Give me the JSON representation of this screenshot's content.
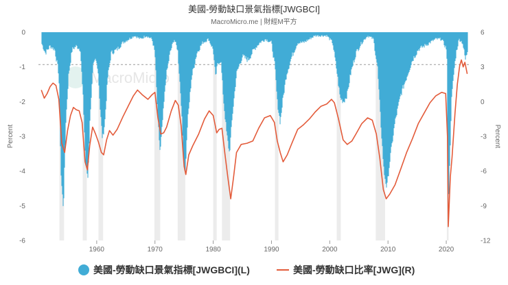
{
  "chart_data": {
    "type": "area",
    "title": "美國-勞動缺口景氣指標[JWGBCI]",
    "subtitle": "MacroMicro.me | 財經M平方",
    "watermark": "MacroMicro",
    "x_ticks": [
      "1960",
      "1970",
      "1980",
      "1990",
      "2000",
      "2010",
      "2020"
    ],
    "x_range": [
      1950,
      2024
    ],
    "left_axis": {
      "label": "Percent",
      "ylim": [
        -6,
        0
      ],
      "ticks": [
        "0",
        "-1",
        "-2",
        "-3",
        "-4",
        "-5",
        "-6"
      ]
    },
    "right_axis": {
      "label": "Percent",
      "ylim": [
        -12,
        6
      ],
      "ticks": [
        "6",
        "3",
        "0",
        "-3",
        "-6",
        "-9",
        "-12"
      ]
    },
    "reference_line_right": 3.2,
    "recessions": [
      [
        1953.6,
        1954.4
      ],
      [
        1957.6,
        1958.3
      ],
      [
        1960.3,
        1961.1
      ],
      [
        1969.9,
        1970.9
      ],
      [
        1973.9,
        1975.2
      ],
      [
        1980.0,
        1980.6
      ],
      [
        1981.5,
        1982.9
      ],
      [
        1990.6,
        1991.2
      ],
      [
        2001.2,
        2001.9
      ],
      [
        2007.9,
        2009.5
      ],
      [
        2020.1,
        2020.4
      ]
    ],
    "series": [
      {
        "name": "美國-勞動缺口景氣指標[JWGBCI](L)",
        "axis": "left",
        "color": "#41acd6",
        "points": [
          [
            1950.5,
            -0.3
          ],
          [
            1951.2,
            -0.6
          ],
          [
            1952.0,
            -0.4
          ],
          [
            1952.8,
            -0.5
          ],
          [
            1953.5,
            -1.2
          ],
          [
            1953.9,
            -4.2
          ],
          [
            1954.3,
            -5.1
          ],
          [
            1954.7,
            -2.6
          ],
          [
            1955.2,
            -1.2
          ],
          [
            1955.8,
            -0.5
          ],
          [
            1956.5,
            -0.4
          ],
          [
            1957.2,
            -0.5
          ],
          [
            1957.7,
            -2.0
          ],
          [
            1958.1,
            -3.8
          ],
          [
            1958.5,
            -4.2
          ],
          [
            1958.9,
            -2.3
          ],
          [
            1959.4,
            -1.0
          ],
          [
            1959.8,
            -0.8
          ],
          [
            1960.2,
            -1.0
          ],
          [
            1960.6,
            -2.2
          ],
          [
            1961.0,
            -3.1
          ],
          [
            1961.4,
            -2.6
          ],
          [
            1961.9,
            -1.3
          ],
          [
            1962.5,
            -0.6
          ],
          [
            1963.5,
            -0.5
          ],
          [
            1964.5,
            -0.3
          ],
          [
            1965.5,
            -0.2
          ],
          [
            1966.5,
            -0.1
          ],
          [
            1967.5,
            -0.2
          ],
          [
            1968.5,
            -0.1
          ],
          [
            1969.5,
            -0.2
          ],
          [
            1970.0,
            -0.6
          ],
          [
            1970.5,
            -2.5
          ],
          [
            1970.9,
            -3.5
          ],
          [
            1971.3,
            -2.6
          ],
          [
            1971.9,
            -1.3
          ],
          [
            1972.6,
            -0.6
          ],
          [
            1973.3,
            -0.2
          ],
          [
            1973.9,
            -0.5
          ],
          [
            1974.5,
            -2.0
          ],
          [
            1974.9,
            -3.6
          ],
          [
            1975.2,
            -4.1
          ],
          [
            1975.6,
            -2.6
          ],
          [
            1976.3,
            -1.3
          ],
          [
            1977.2,
            -0.6
          ],
          [
            1978.2,
            -0.3
          ],
          [
            1979.2,
            -0.2
          ],
          [
            1980.0,
            -0.5
          ],
          [
            1980.4,
            -1.3
          ],
          [
            1980.8,
            -0.9
          ],
          [
            1981.3,
            -0.8
          ],
          [
            1981.8,
            -2.0
          ],
          [
            1982.3,
            -2.9
          ],
          [
            1982.8,
            -3.5
          ],
          [
            1983.3,
            -2.4
          ],
          [
            1984.0,
            -1.2
          ],
          [
            1985.0,
            -0.7
          ],
          [
            1986.0,
            -0.8
          ],
          [
            1987.0,
            -0.5
          ],
          [
            1988.0,
            -0.3
          ],
          [
            1989.0,
            -0.2
          ],
          [
            1990.0,
            -0.3
          ],
          [
            1990.6,
            -1.0
          ],
          [
            1991.0,
            -2.0
          ],
          [
            1991.5,
            -2.6
          ],
          [
            1992.0,
            -1.9
          ],
          [
            1992.6,
            -1.2
          ],
          [
            1993.5,
            -0.7
          ],
          [
            1994.5,
            -0.3
          ],
          [
            1995.5,
            -0.3
          ],
          [
            1996.5,
            -0.2
          ],
          [
            1997.5,
            -0.1
          ],
          [
            1998.5,
            -0.1
          ],
          [
            1999.5,
            -0.1
          ],
          [
            2000.5,
            -0.3
          ],
          [
            2001.2,
            -1.1
          ],
          [
            2001.8,
            -1.9
          ],
          [
            2002.4,
            -2.0
          ],
          [
            2003.0,
            -1.8
          ],
          [
            2003.6,
            -1.2
          ],
          [
            2004.5,
            -0.6
          ],
          [
            2005.5,
            -0.3
          ],
          [
            2006.5,
            -0.1
          ],
          [
            2007.5,
            -0.2
          ],
          [
            2008.2,
            -1.0
          ],
          [
            2008.8,
            -2.7
          ],
          [
            2009.3,
            -4.0
          ],
          [
            2009.8,
            -4.5
          ],
          [
            2010.4,
            -3.6
          ],
          [
            2011.2,
            -2.6
          ],
          [
            2012.2,
            -1.8
          ],
          [
            2013.2,
            -1.3
          ],
          [
            2014.2,
            -0.8
          ],
          [
            2015.2,
            -0.5
          ],
          [
            2016.2,
            -0.4
          ],
          [
            2017.2,
            -0.3
          ],
          [
            2018.2,
            -0.2
          ],
          [
            2019.2,
            -0.2
          ],
          [
            2020.1,
            -0.5
          ],
          [
            2020.3,
            -5.6
          ],
          [
            2020.6,
            -3.8
          ],
          [
            2020.9,
            -2.0
          ],
          [
            2021.3,
            -1.2
          ],
          [
            2021.7,
            -0.6
          ],
          [
            2022.2,
            -0.2
          ],
          [
            2022.8,
            -0.3
          ],
          [
            2023.3,
            -0.8
          ],
          [
            2023.7,
            -0.5
          ]
        ]
      },
      {
        "name": "美國-勞動缺口比率[JWG](R)",
        "axis": "right",
        "color": "#e35b3a",
        "points": [
          [
            1950.5,
            1.0
          ],
          [
            1951.0,
            0.3
          ],
          [
            1951.5,
            0.7
          ],
          [
            1952.0,
            1.3
          ],
          [
            1952.5,
            1.6
          ],
          [
            1953.0,
            1.4
          ],
          [
            1953.5,
            0.2
          ],
          [
            1954.0,
            -3.6
          ],
          [
            1954.5,
            -4.4
          ],
          [
            1955.0,
            -2.5
          ],
          [
            1955.5,
            -1.2
          ],
          [
            1956.0,
            -0.5
          ],
          [
            1956.5,
            -0.7
          ],
          [
            1957.0,
            -0.8
          ],
          [
            1957.5,
            -1.8
          ],
          [
            1958.0,
            -5.2
          ],
          [
            1958.4,
            -5.9
          ],
          [
            1958.8,
            -3.8
          ],
          [
            1959.3,
            -2.2
          ],
          [
            1959.8,
            -2.8
          ],
          [
            1960.3,
            -3.5
          ],
          [
            1960.8,
            -4.4
          ],
          [
            1961.2,
            -4.6
          ],
          [
            1961.7,
            -3.3
          ],
          [
            1962.2,
            -2.5
          ],
          [
            1962.8,
            -2.9
          ],
          [
            1963.5,
            -2.4
          ],
          [
            1964.5,
            -1.3
          ],
          [
            1965.5,
            -0.3
          ],
          [
            1966.3,
            0.5
          ],
          [
            1967.0,
            1.0
          ],
          [
            1967.8,
            0.6
          ],
          [
            1968.8,
            0.2
          ],
          [
            1969.5,
            0.6
          ],
          [
            1970.0,
            0.8
          ],
          [
            1970.5,
            -1.4
          ],
          [
            1971.0,
            -2.8
          ],
          [
            1971.5,
            -2.7
          ],
          [
            1972.0,
            -2.2
          ],
          [
            1972.8,
            -0.8
          ],
          [
            1973.5,
            0.1
          ],
          [
            1974.0,
            -0.3
          ],
          [
            1974.5,
            -2.1
          ],
          [
            1975.0,
            -5.6
          ],
          [
            1975.3,
            -6.3
          ],
          [
            1975.8,
            -4.6
          ],
          [
            1976.5,
            -3.8
          ],
          [
            1977.5,
            -2.8
          ],
          [
            1978.5,
            -1.5
          ],
          [
            1979.3,
            -0.8
          ],
          [
            1980.0,
            -1.2
          ],
          [
            1980.6,
            -2.7
          ],
          [
            1981.0,
            -2.4
          ],
          [
            1981.5,
            -2.3
          ],
          [
            1982.0,
            -4.5
          ],
          [
            1982.5,
            -6.5
          ],
          [
            1983.0,
            -8.4
          ],
          [
            1983.5,
            -6.5
          ],
          [
            1984.0,
            -4.4
          ],
          [
            1984.8,
            -3.7
          ],
          [
            1985.8,
            -3.6
          ],
          [
            1986.8,
            -3.4
          ],
          [
            1987.8,
            -2.3
          ],
          [
            1988.8,
            -1.4
          ],
          [
            1989.8,
            -1.2
          ],
          [
            1990.5,
            -1.8
          ],
          [
            1991.0,
            -3.4
          ],
          [
            1991.5,
            -4.4
          ],
          [
            1992.0,
            -5.2
          ],
          [
            1992.7,
            -4.6
          ],
          [
            1993.5,
            -3.6
          ],
          [
            1994.5,
            -2.4
          ],
          [
            1995.5,
            -2.0
          ],
          [
            1996.5,
            -1.5
          ],
          [
            1997.5,
            -0.9
          ],
          [
            1998.5,
            -0.4
          ],
          [
            1999.5,
            -0.2
          ],
          [
            2000.3,
            0.2
          ],
          [
            2000.8,
            -0.1
          ],
          [
            2001.5,
            -1.5
          ],
          [
            2002.3,
            -3.3
          ],
          [
            2003.0,
            -3.7
          ],
          [
            2003.8,
            -3.4
          ],
          [
            2004.5,
            -2.8
          ],
          [
            2005.5,
            -1.9
          ],
          [
            2006.5,
            -1.4
          ],
          [
            2007.3,
            -1.6
          ],
          [
            2008.0,
            -2.8
          ],
          [
            2008.6,
            -4.9
          ],
          [
            2009.2,
            -7.6
          ],
          [
            2009.7,
            -8.4
          ],
          [
            2010.3,
            -8.0
          ],
          [
            2011.2,
            -7.2
          ],
          [
            2012.2,
            -5.8
          ],
          [
            2013.2,
            -4.4
          ],
          [
            2014.2,
            -3.2
          ],
          [
            2015.2,
            -1.9
          ],
          [
            2016.2,
            -1.0
          ],
          [
            2017.2,
            -0.1
          ],
          [
            2018.2,
            0.5
          ],
          [
            2019.2,
            0.8
          ],
          [
            2019.9,
            0.7
          ],
          [
            2020.2,
            -3.0
          ],
          [
            2020.35,
            -10.8
          ],
          [
            2020.7,
            -6.5
          ],
          [
            2021.0,
            -4.8
          ],
          [
            2021.5,
            -1.0
          ],
          [
            2021.9,
            1.5
          ],
          [
            2022.3,
            3.1
          ],
          [
            2022.6,
            3.6
          ],
          [
            2022.9,
            3.0
          ],
          [
            2023.2,
            3.4
          ],
          [
            2023.6,
            2.4
          ]
        ]
      }
    ],
    "legend": [
      {
        "label": "美國-勞動缺口景氣指標[JWGBCI](L)",
        "marker": "circle",
        "color": "#41acd6"
      },
      {
        "label": "美國-勞動缺口比率[JWG](R)",
        "marker": "line",
        "color": "#e35b3a"
      }
    ]
  }
}
